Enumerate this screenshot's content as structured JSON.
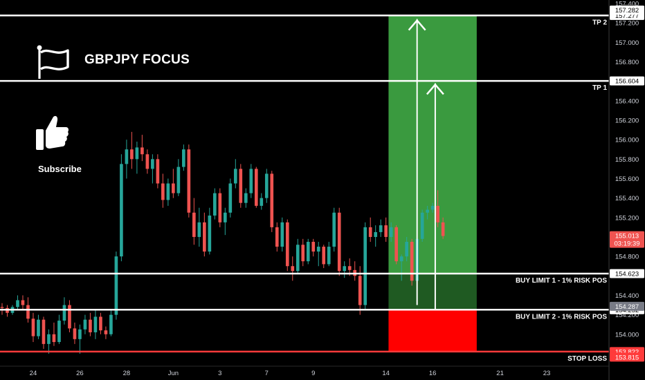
{
  "header": {
    "title": "GBPJPY FOCUS",
    "subscribe_label": "Subscribe"
  },
  "icons": {
    "flag": "flag-icon",
    "thumb": "thumbs-up-icon"
  },
  "colors": {
    "up": "#26a69a",
    "down": "#ef5350",
    "background": "#000000",
    "target_zone": "#3a9a3f",
    "entry_zone": "#1f5a22",
    "stop_zone": "#ff0000",
    "stop_line": "#ff3b3b",
    "level_line": "#ffffff",
    "price_tag": "#ef5350"
  },
  "chart_data": {
    "type": "candlestick",
    "symbol_currency": "JPY",
    "ylim": [
      153.75,
      157.4
    ],
    "y_ticks": [
      "154.000",
      "154.200",
      "154.400",
      "154.800",
      "155.000",
      "155.200",
      "155.400",
      "155.600",
      "155.800",
      "156.000",
      "156.200",
      "156.400",
      "156.800",
      "157.000",
      "157.200",
      "157.400"
    ],
    "x_ticks": [
      {
        "label": "24",
        "i": 6
      },
      {
        "label": "26",
        "i": 15
      },
      {
        "label": "28",
        "i": 24
      },
      {
        "label": "Jun",
        "i": 33
      },
      {
        "label": "3",
        "i": 42
      },
      {
        "label": "7",
        "i": 51
      },
      {
        "label": "9",
        "i": 60
      },
      {
        "label": "14",
        "i": 74
      },
      {
        "label": "16",
        "i": 83
      },
      {
        "label": "21",
        "i": 96
      },
      {
        "label": "23",
        "i": 105
      }
    ],
    "levels": [
      {
        "name": "TP 2",
        "price": 157.277,
        "tag": "157.277",
        "kind": "line"
      },
      {
        "name": "TP 1",
        "price": 156.604,
        "tag": "156.604",
        "kind": "line"
      },
      {
        "name": "BUY LIMIT 1 - 1% RISK POS",
        "price": 154.623,
        "tag": "154.623",
        "kind": "line"
      },
      {
        "name": "BUY LIMIT 2 - 1% RISK POS",
        "price": 154.252,
        "tag": "154.252",
        "kind": "line"
      },
      {
        "name": "STOP LOSS",
        "price": 153.822,
        "tag": "153.822",
        "kind": "stop"
      }
    ],
    "extra_tags": [
      {
        "text": "157.282",
        "price": 157.282,
        "style": "white"
      },
      {
        "text": "154.287",
        "price": 154.287,
        "style": "grey"
      },
      {
        "text": "153.815",
        "price": 153.815,
        "style": "red"
      }
    ],
    "current_price": {
      "price": 155.013,
      "text": "155.013",
      "countdown": "03:19:39"
    },
    "position": {
      "start_i": 74.5,
      "end_i": 91.5,
      "target": 157.277,
      "entry": 154.623,
      "entry_low": 154.252,
      "stop": 153.822
    },
    "arrows": [
      {
        "x_i": 80,
        "from": 154.3,
        "to": 157.24
      },
      {
        "x_i": 83.5,
        "from": 154.25,
        "to": 156.58
      }
    ],
    "x_range": [
      0,
      117
    ],
    "candles": [
      [
        154.28,
        154.32,
        154.2,
        154.27
      ],
      [
        154.27,
        154.3,
        154.18,
        154.22
      ],
      [
        154.22,
        154.3,
        154.2,
        154.28
      ],
      [
        154.28,
        154.4,
        154.25,
        154.35
      ],
      [
        154.35,
        154.4,
        154.25,
        154.3
      ],
      [
        154.3,
        154.38,
        154.12,
        154.16
      ],
      [
        154.16,
        154.22,
        153.92,
        153.98
      ],
      [
        153.98,
        154.2,
        153.95,
        154.15
      ],
      [
        154.15,
        154.18,
        153.85,
        153.9
      ],
      [
        153.9,
        154.05,
        153.8,
        154.0
      ],
      [
        154.0,
        154.12,
        153.88,
        153.92
      ],
      [
        153.92,
        154.2,
        153.9,
        154.14
      ],
      [
        154.14,
        154.38,
        154.1,
        154.3
      ],
      [
        154.3,
        154.35,
        154.02,
        154.06
      ],
      [
        154.06,
        154.12,
        153.9,
        153.95
      ],
      [
        153.95,
        154.1,
        153.8,
        154.05
      ],
      [
        154.05,
        154.2,
        154.0,
        154.15
      ],
      [
        154.15,
        154.22,
        153.98,
        154.02
      ],
      [
        154.02,
        154.25,
        153.95,
        154.18
      ],
      [
        154.18,
        154.22,
        154.0,
        154.04
      ],
      [
        154.04,
        154.08,
        153.95,
        154.0
      ],
      [
        154.0,
        154.25,
        153.98,
        154.2
      ],
      [
        154.2,
        154.85,
        154.15,
        154.8
      ],
      [
        154.8,
        155.85,
        154.75,
        155.75
      ],
      [
        155.75,
        156.0,
        155.6,
        155.9
      ],
      [
        155.9,
        156.08,
        155.7,
        155.8
      ],
      [
        155.8,
        155.98,
        155.65,
        155.92
      ],
      [
        155.92,
        156.05,
        155.78,
        155.85
      ],
      [
        155.85,
        155.9,
        155.65,
        155.7
      ],
      [
        155.7,
        155.85,
        155.55,
        155.8
      ],
      [
        155.8,
        155.85,
        155.5,
        155.55
      ],
      [
        155.55,
        155.65,
        155.3,
        155.38
      ],
      [
        155.38,
        155.6,
        155.32,
        155.55
      ],
      [
        155.55,
        155.7,
        155.4,
        155.45
      ],
      [
        155.45,
        155.8,
        155.42,
        155.72
      ],
      [
        155.72,
        155.95,
        155.68,
        155.9
      ],
      [
        155.9,
        155.95,
        155.2,
        155.25
      ],
      [
        155.25,
        155.4,
        154.92,
        155.0
      ],
      [
        155.0,
        155.3,
        154.9,
        155.15
      ],
      [
        155.15,
        155.25,
        154.8,
        154.85
      ],
      [
        154.85,
        155.3,
        154.82,
        155.22
      ],
      [
        155.22,
        155.5,
        155.18,
        155.45
      ],
      [
        155.45,
        155.5,
        155.1,
        155.15
      ],
      [
        155.15,
        155.3,
        155.02,
        155.25
      ],
      [
        155.25,
        155.6,
        155.2,
        155.55
      ],
      [
        155.55,
        155.8,
        155.5,
        155.7
      ],
      [
        155.7,
        155.75,
        155.3,
        155.35
      ],
      [
        155.35,
        155.5,
        155.3,
        155.45
      ],
      [
        155.45,
        155.75,
        155.4,
        155.7
      ],
      [
        155.7,
        155.72,
        155.3,
        155.32
      ],
      [
        155.32,
        155.45,
        155.28,
        155.4
      ],
      [
        155.4,
        155.7,
        155.35,
        155.65
      ],
      [
        155.65,
        155.68,
        155.05,
        155.1
      ],
      [
        155.1,
        155.15,
        154.85,
        154.9
      ],
      [
        154.9,
        155.2,
        154.85,
        155.15
      ],
      [
        155.15,
        155.18,
        154.65,
        154.7
      ],
      [
        154.7,
        154.8,
        154.55,
        154.65
      ],
      [
        154.65,
        154.98,
        154.62,
        154.92
      ],
      [
        154.92,
        154.98,
        154.7,
        154.75
      ],
      [
        154.75,
        154.98,
        154.72,
        154.95
      ],
      [
        154.95,
        154.98,
        154.8,
        154.85
      ],
      [
        154.85,
        154.95,
        154.7,
        154.9
      ],
      [
        154.9,
        154.92,
        154.68,
        154.72
      ],
      [
        154.72,
        154.95,
        154.7,
        154.9
      ],
      [
        154.9,
        155.3,
        154.85,
        155.25
      ],
      [
        155.25,
        155.3,
        154.6,
        154.65
      ],
      [
        154.65,
        154.75,
        154.58,
        154.7
      ],
      [
        154.7,
        154.78,
        154.6,
        154.66
      ],
      [
        154.66,
        154.75,
        154.55,
        154.6
      ],
      [
        154.6,
        154.7,
        154.2,
        154.3
      ],
      [
        154.3,
        155.15,
        154.25,
        155.1
      ],
      [
        155.1,
        155.2,
        154.95,
        155.0
      ],
      [
        155.0,
        155.12,
        154.9,
        155.05
      ],
      [
        155.05,
        155.18,
        155.0,
        155.12
      ],
      [
        155.12,
        155.2,
        154.95,
        155.0
      ],
      [
        155.0,
        155.15,
        154.95,
        155.1
      ],
      [
        155.1,
        155.12,
        154.72,
        154.75
      ],
      [
        154.75,
        154.82,
        154.55,
        154.8
      ],
      [
        154.8,
        155.0,
        154.75,
        154.95
      ],
      [
        154.95,
        154.98,
        154.5,
        154.55
      ],
      [
        154.55,
        155.0,
        154.4,
        154.98
      ],
      [
        154.98,
        155.28,
        154.95,
        155.25
      ],
      [
        155.25,
        155.32,
        155.18,
        155.28
      ],
      [
        155.28,
        155.35,
        155.25,
        155.32
      ],
      [
        155.32,
        155.48,
        155.1,
        155.15
      ],
      [
        155.15,
        155.2,
        154.98,
        155.01
      ]
    ]
  }
}
